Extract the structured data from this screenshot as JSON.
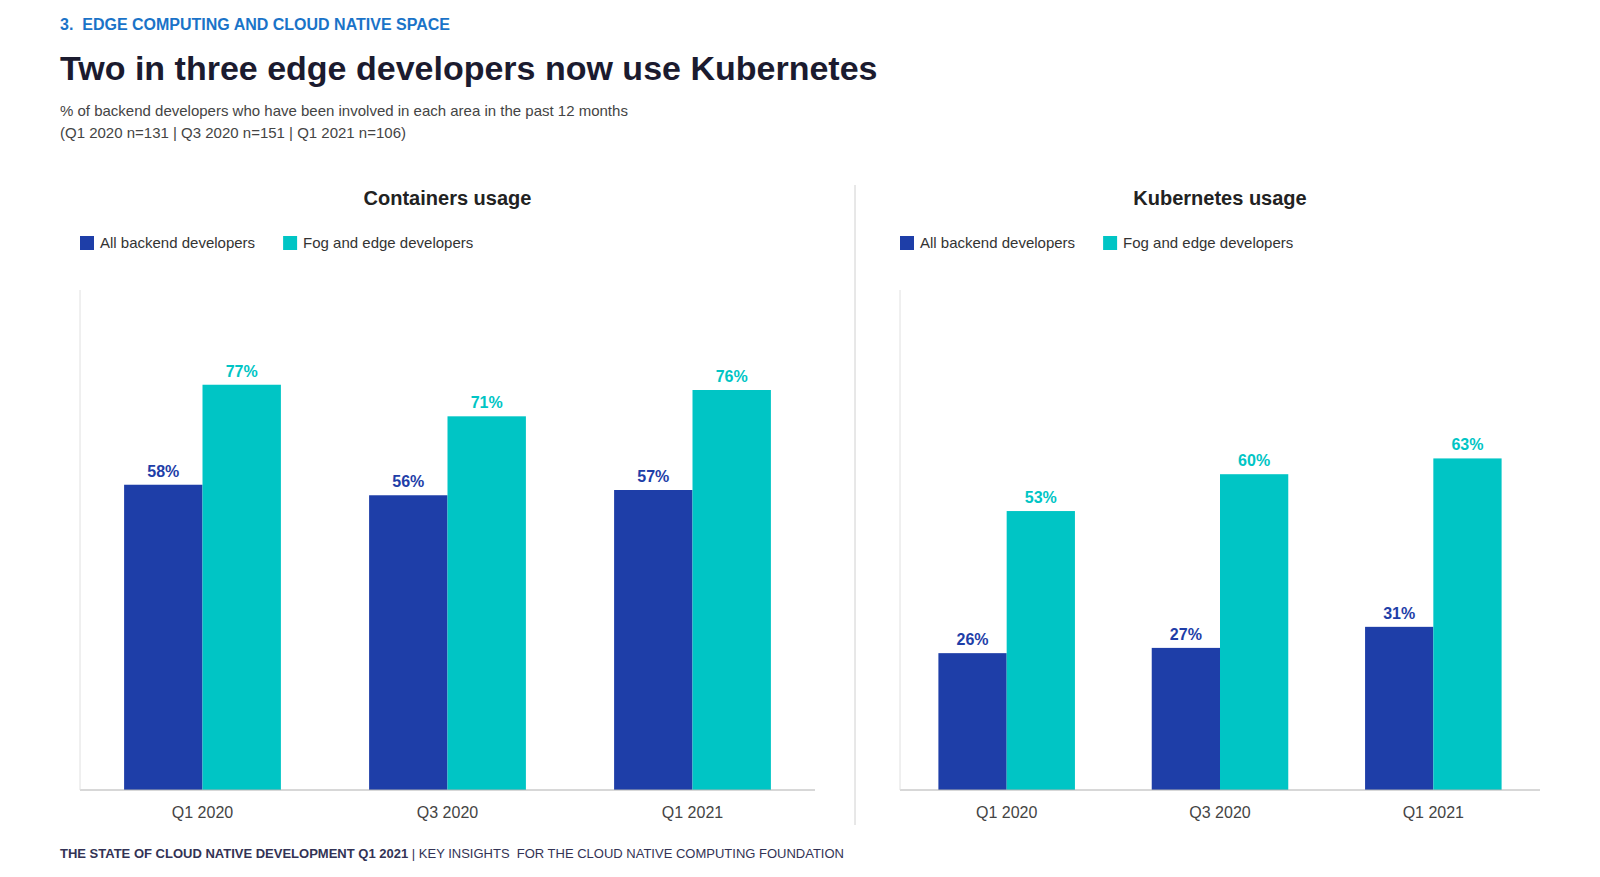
{
  "title": "Two in three edge developers now use Kubernetes",
  "subtitle": [
    "% of backend developers who have been involved in each area in the past 12 months",
    "(Q1 2020 n=131 | Q3 2020 n=151 | Q1 2021 n=106)"
  ],
  "annotations": [
    "3.  EDGE COMPUTING AND CLOUD NATIVE SPACE",
    "THE STATE OF CLOUD NATIVE DEVELOPMENT Q1 2021 ",
    "|",
    " KEY INSIGHTS  FOR THE CLOUD NATIVE COMPUTING FOUNDATION"
  ],
  "chart_data": [
    {
      "type": "bar",
      "title": "Containers usage",
      "categories": [
        "Q1 2020",
        "Q3 2020",
        "Q1 2021"
      ],
      "series": [
        {
          "name": "All backend developers",
          "color": "#1E3EA8",
          "values": [
            58,
            56,
            57
          ],
          "value_labels": [
            "58%",
            "56%",
            "57%"
          ]
        },
        {
          "name": "Fog and edge developers",
          "color": "#00C5C5",
          "values": [
            77,
            71,
            76
          ],
          "value_labels": [
            "77%",
            "71%",
            "76%"
          ]
        }
      ],
      "ylim": [
        0,
        95
      ],
      "grid": false,
      "legend": "upper left",
      "data_labels": true,
      "tick_labels": "x"
    },
    {
      "type": "bar",
      "title": "Kubernetes usage",
      "categories": [
        "Q1 2020",
        "Q3 2020",
        "Q1 2021"
      ],
      "series": [
        {
          "name": "All backend developers",
          "color": "#1E3EA8",
          "values": [
            26,
            27,
            31
          ],
          "value_labels": [
            "26%",
            "27%",
            "31%"
          ]
        },
        {
          "name": "Fog and edge developers",
          "color": "#00C5C5",
          "values": [
            53,
            60,
            63
          ],
          "value_labels": [
            "53%",
            "60%",
            "63%"
          ]
        }
      ],
      "ylim": [
        0,
        95
      ],
      "grid": false,
      "legend": "upper left",
      "data_labels": true,
      "tick_labels": "x"
    }
  ]
}
